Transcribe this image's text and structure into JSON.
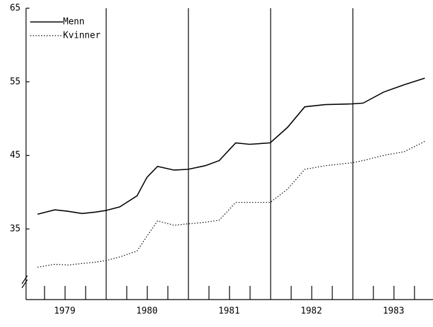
{
  "chart_data": {
    "type": "line",
    "x": [
      1979.17,
      1979.38,
      1979.54,
      1979.71,
      1979.88,
      1980.0,
      1980.17,
      1980.38,
      1980.5,
      1980.63,
      1980.83,
      1981.0,
      1981.21,
      1981.38,
      1981.58,
      1981.75,
      1982.0,
      1982.21,
      1982.42,
      1982.67,
      1983.0,
      1983.13,
      1983.38,
      1983.63,
      1983.88
    ],
    "series": [
      {
        "name": "Menn",
        "color": "#000000",
        "style": "solid",
        "values": [
          37.0,
          37.6,
          37.4,
          37.1,
          37.3,
          37.5,
          38.0,
          39.5,
          42.0,
          43.5,
          43.0,
          43.1,
          43.6,
          44.3,
          46.7,
          46.5,
          46.7,
          48.8,
          51.6,
          51.9,
          52.0,
          52.1,
          53.6,
          54.6,
          55.5
        ]
      },
      {
        "name": "Kvinner",
        "color": "#000000",
        "style": "dotted",
        "values": [
          29.8,
          30.2,
          30.1,
          30.3,
          30.5,
          30.7,
          31.2,
          32.0,
          34.0,
          36.1,
          35.5,
          35.7,
          35.9,
          36.2,
          38.6,
          38.6,
          38.6,
          40.4,
          43.1,
          43.6,
          44.0,
          44.3,
          45.0,
          45.5,
          46.9
        ]
      }
    ],
    "xlim": [
      1979.03,
      1983.98
    ],
    "xticks": [
      {
        "value": 1979.5,
        "label": "1979"
      },
      {
        "value": 1980.5,
        "label": "1980"
      },
      {
        "value": 1981.5,
        "label": "1981"
      },
      {
        "value": 1982.5,
        "label": "1982"
      },
      {
        "value": 1983.5,
        "label": "1983"
      }
    ],
    "ylim": [
      25.4,
      65
    ],
    "yticks": [
      35,
      45,
      55,
      65
    ],
    "legend": "upper left"
  }
}
